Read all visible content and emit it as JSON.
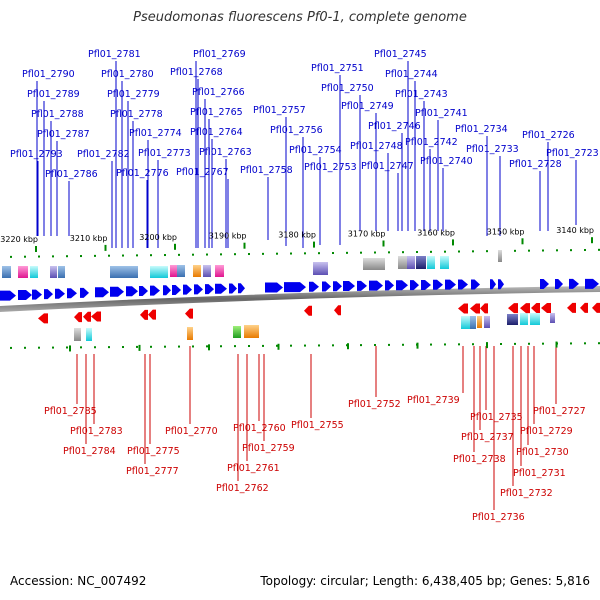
{
  "title": "Pseudomonas fluorescens Pf0-1, complete genome",
  "footer": {
    "accession_label": "Accession:",
    "accession": "NC_007492",
    "topology_label": "Topology:",
    "topology": "circular",
    "length_label": "Length:",
    "length": "6,438,405 bp",
    "genes_label": "Genes:",
    "genes": "5,816"
  },
  "colors": {
    "forward_gene": "#0000ee",
    "reverse_gene": "#ee0000",
    "forward_label": "#0000cc",
    "reverse_label": "#cc0000",
    "ticks": "#008800",
    "backbone": "#777777"
  },
  "scale_ticks": [
    {
      "label": "3220 kbp",
      "kbp": 3220
    },
    {
      "label": "3210 kbp",
      "kbp": 3210
    },
    {
      "label": "3200 kbp",
      "kbp": 3200
    },
    {
      "label": "3190 kbp",
      "kbp": 3190
    },
    {
      "label": "3180 kbp",
      "kbp": 3180
    },
    {
      "label": "3170 kbp",
      "kbp": 3170
    },
    {
      "label": "3160 kbp",
      "kbp": 3160
    },
    {
      "label": "3150 kbp",
      "kbp": 3150
    },
    {
      "label": "3140 kbp",
      "kbp": 3140
    }
  ],
  "forward_genes": [
    "Pfl01_2781",
    "Pfl01_2769",
    "Pfl01_2790",
    "Pfl01_2780",
    "Pfl01_2768",
    "Pfl01_2789",
    "Pfl01_2779",
    "Pfl01_2766",
    "Pfl01_2788",
    "Pfl01_2778",
    "Pfl01_2765",
    "Pfl01_2787",
    "Pfl01_2774",
    "Pfl01_2764",
    "Pfl01_2793",
    "Pfl01_2782",
    "Pfl01_2773",
    "Pfl01_2763",
    "Pfl01_2786",
    "Pfl01_2776",
    "Pfl01_2767",
    "Pfl01_2758",
    "Pfl01_2757",
    "Pfl01_2756",
    "Pfl01_2754",
    "Pfl01_2753",
    "Pfl01_2751",
    "Pfl01_2750",
    "Pfl01_2749",
    "Pfl01_2748",
    "Pfl01_2747",
    "Pfl01_2745",
    "Pfl01_2744",
    "Pfl01_2743",
    "Pfl01_2746",
    "Pfl01_2742",
    "Pfl01_2741",
    "Pfl01_2740",
    "Pfl01_2734",
    "Pfl01_2733",
    "Pfl01_2726",
    "Pfl01_2728",
    "Pfl01_2723"
  ],
  "reverse_genes": [
    "Pfl01_2785",
    "Pfl01_2783",
    "Pfl01_2784",
    "Pfl01_2775",
    "Pfl01_2777",
    "Pfl01_2770",
    "Pfl01_2760",
    "Pfl01_2759",
    "Pfl01_2761",
    "Pfl01_2762",
    "Pfl01_2755",
    "Pfl01_2752",
    "Pfl01_2739",
    "Pfl01_2735",
    "Pfl01_2737",
    "Pfl01_2738",
    "Pfl01_2736",
    "Pfl01_2727",
    "Pfl01_2729",
    "Pfl01_2730",
    "Pfl01_2731",
    "Pfl01_2732"
  ]
}
